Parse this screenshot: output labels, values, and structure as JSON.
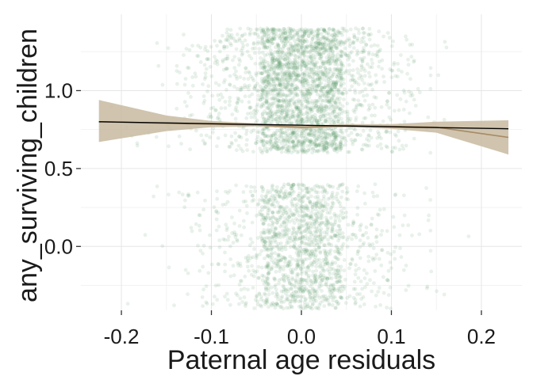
{
  "chart_data": {
    "type": "scatter",
    "title": "",
    "xlabel": "Paternal age residuals",
    "ylabel": "any_surviving_children",
    "xlim": [
      -0.245,
      0.245
    ],
    "ylim": [
      -0.41,
      1.49
    ],
    "x_ticks": [
      -0.2,
      -0.1,
      0.0,
      0.1,
      0.2
    ],
    "x_tick_labels": [
      "-0.2",
      "-0.1",
      "0.0",
      "0.1",
      "0.2"
    ],
    "y_ticks": [
      0.0,
      0.5,
      1.0
    ],
    "y_tick_labels": [
      "0.0",
      "0.5",
      "1.0"
    ],
    "grid": true,
    "jitter_bands": [
      {
        "outcome": 0,
        "y_range": [
          -0.4,
          0.4
        ]
      },
      {
        "outcome": 1,
        "y_range": [
          0.6,
          1.4
        ]
      }
    ],
    "point_color": "#4e9459",
    "x_dense_core": [
      -0.045,
      0.045
    ],
    "x_spread": [
      -0.22,
      0.23
    ],
    "linear_fit": {
      "x": [
        -0.225,
        0.23
      ],
      "y": [
        0.8,
        0.755
      ],
      "color": "#000000"
    },
    "smooth_fit": {
      "x": [
        -0.225,
        -0.15,
        -0.1,
        -0.05,
        0.0,
        0.05,
        0.1,
        0.15,
        0.23
      ],
      "y": [
        0.8,
        0.79,
        0.785,
        0.78,
        0.765,
        0.775,
        0.77,
        0.765,
        0.7
      ],
      "ci_lower": [
        0.67,
        0.74,
        0.765,
        0.77,
        0.755,
        0.765,
        0.755,
        0.73,
        0.59
      ],
      "ci_upper": [
        0.94,
        0.84,
        0.805,
        0.79,
        0.775,
        0.785,
        0.785,
        0.8,
        0.81
      ],
      "line_color": "#a68a64",
      "band_color": "#c8baa0"
    }
  }
}
